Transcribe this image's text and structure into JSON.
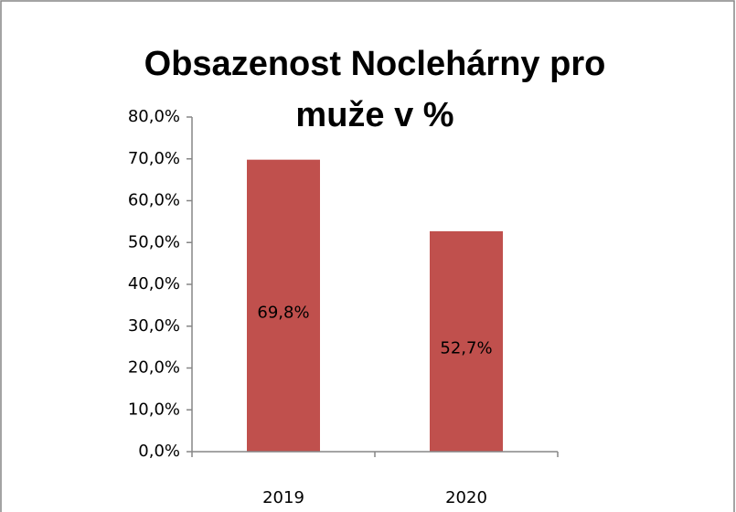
{
  "chart_data": {
    "type": "bar",
    "title": [
      "Obsazenost Noclehárny pro",
      "muže v %"
    ],
    "categories": [
      "2019",
      "2020"
    ],
    "values": [
      69.8,
      52.7
    ],
    "value_labels": [
      "69,8%",
      "52,7%"
    ],
    "color": "#c0504d",
    "ylim": [
      0,
      80
    ],
    "yticks": [
      {
        "value": 0,
        "label": "0,0%"
      },
      {
        "value": 10,
        "label": "10,0%"
      },
      {
        "value": 20,
        "label": "20,0%"
      },
      {
        "value": 30,
        "label": "30,0%"
      },
      {
        "value": 40,
        "label": "40,0%"
      },
      {
        "value": 50,
        "label": "50,0%"
      },
      {
        "value": 60,
        "label": "60,0%"
      },
      {
        "value": 70,
        "label": "70,0%"
      },
      {
        "value": 80,
        "label": "80,0%"
      }
    ],
    "grid": false
  }
}
